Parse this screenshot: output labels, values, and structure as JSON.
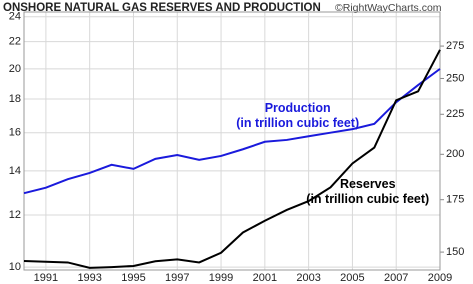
{
  "chart_data": {
    "type": "line",
    "title": "ONSHORE NATURAL GAS RESERVES AND PRODUCTION",
    "credit": "©RightWayCharts.com",
    "x": [
      1990,
      1991,
      1992,
      1993,
      1994,
      1995,
      1996,
      1997,
      1998,
      1999,
      2000,
      2001,
      2002,
      2003,
      2004,
      2005,
      2006,
      2007,
      2008,
      2009
    ],
    "series": [
      {
        "name": "Production",
        "color": "#1a1adc",
        "axis": "y",
        "values": [
          12.95,
          13.2,
          13.6,
          13.9,
          14.3,
          14.1,
          14.6,
          14.8,
          14.55,
          14.75,
          15.1,
          15.5,
          15.6,
          15.8,
          16.0,
          16.2,
          16.5,
          17.8,
          18.9,
          20.0
        ]
      },
      {
        "name": "Reserves",
        "color": "#000000",
        "axis": "y2",
        "values": [
          146.1,
          145.8,
          145.5,
          143.2,
          143.5,
          144,
          146,
          146.8,
          145.5,
          149.7,
          158.9,
          164.5,
          169.8,
          174.3,
          181.5,
          194.7,
          204,
          234.5,
          240.7,
          272
        ]
      }
    ],
    "annotations": [
      {
        "lines": [
          "Production",
          "(in trillion cubic feet)"
        ],
        "color": "#1a1adc",
        "x": 2002.5,
        "y": 17.4,
        "axis": "y"
      },
      {
        "lines": [
          "Reserves",
          "(in trillion cubic feet)"
        ],
        "color": "#000000",
        "x": 2005.7,
        "y": 183,
        "axis": "y2"
      }
    ],
    "xlim": [
      1990,
      2009
    ],
    "xticks": [
      1991,
      1993,
      1995,
      1997,
      1999,
      2001,
      2003,
      2005,
      2007,
      2009
    ],
    "ylim": [
      9.9,
      24.4
    ],
    "ylog": true,
    "yticks": [
      10,
      12,
      14,
      16,
      18,
      20,
      22,
      24
    ],
    "y2lim": [
      142.3,
      304
    ],
    "y2log": true,
    "y2ticks": [
      150,
      175,
      200,
      225,
      250,
      275
    ],
    "grid": true
  }
}
